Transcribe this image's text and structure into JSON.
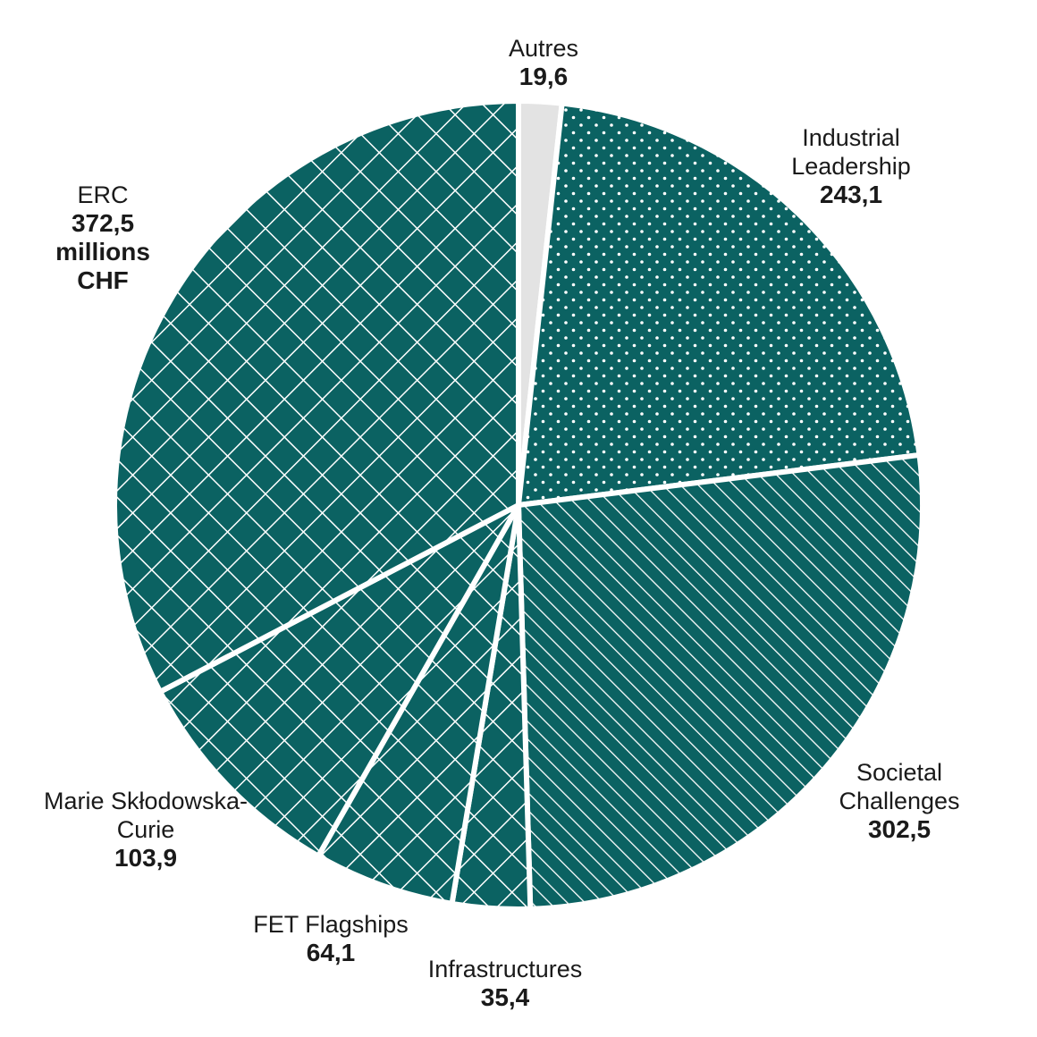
{
  "chart_data": {
    "type": "pie",
    "title": "",
    "unit": "millions CHF",
    "colors": {
      "fill": "#0b6262",
      "pattern": "#ffffff",
      "other": "#e3e3e3",
      "separator": "#ffffff"
    },
    "slices": [
      {
        "key": "autres",
        "label": "Autres",
        "value": 19.6,
        "value_label": "19,6",
        "pattern": "solid-light"
      },
      {
        "key": "industrial",
        "label": "Industrial Leadership",
        "value": 243.1,
        "value_label": "243,1",
        "pattern": "dots"
      },
      {
        "key": "societal",
        "label": "Societal Challenges",
        "value": 302.5,
        "value_label": "302,5",
        "pattern": "diagonal-lines"
      },
      {
        "key": "infra",
        "label": "Infrastructures",
        "value": 35.4,
        "value_label": "35,4",
        "pattern": "crosshatch"
      },
      {
        "key": "fet",
        "label": "FET Flagships",
        "value": 64.1,
        "value_label": "64,1",
        "pattern": "crosshatch"
      },
      {
        "key": "marie",
        "label": "Marie Skłodowska-Curie",
        "value": 103.9,
        "value_label": "103,9",
        "pattern": "crosshatch"
      },
      {
        "key": "erc",
        "label": "ERC",
        "value": 372.5,
        "value_label": "372,5",
        "value_unit": "millions CHF",
        "pattern": "crosshatch"
      }
    ]
  }
}
